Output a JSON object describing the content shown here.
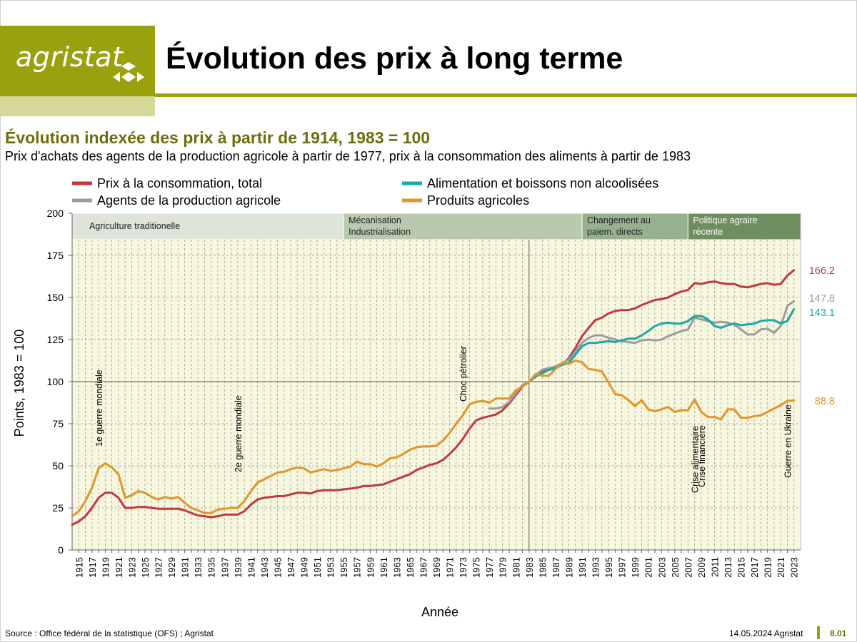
{
  "header": {
    "logo_text": "agristat",
    "page_title": "Évolution des prix à long terme"
  },
  "chart_heading": {
    "title": "Évolution indexée des prix à partir de 1914, 1983 = 100",
    "subtitle": "Prix d'achats des agents de la production agricole à partir de 1977, prix à la consommation des aliments à partir de 1983"
  },
  "footer": {
    "source": "Source : Office fédéral de la statistique (OFS) ; Agristat",
    "date": "14.05.2024 Agristat",
    "page": "8.01"
  },
  "colors": {
    "brand": "#9aa10f",
    "brand_light": "#d7d99a",
    "title_text": "#6b6f0b",
    "plot_bg": "#f7f6df",
    "grid": "#9a9a88"
  },
  "chart_data": {
    "type": "line",
    "xlabel": "Année",
    "ylabel": "Points, 1983 = 100",
    "ylim": [
      0,
      200
    ],
    "yticks": [
      0,
      25,
      50,
      75,
      100,
      125,
      150,
      175,
      200
    ],
    "xlim": [
      1914,
      2024
    ],
    "xticks": [
      1915,
      1917,
      1919,
      1921,
      1923,
      1925,
      1927,
      1929,
      1931,
      1933,
      1935,
      1937,
      1939,
      1941,
      1943,
      1945,
      1947,
      1949,
      1951,
      1953,
      1955,
      1957,
      1959,
      1961,
      1963,
      1965,
      1967,
      1969,
      1971,
      1973,
      1975,
      1977,
      1979,
      1981,
      1983,
      1985,
      1987,
      1989,
      1991,
      1993,
      1995,
      1997,
      1999,
      2001,
      2003,
      2005,
      2007,
      2009,
      2011,
      2013,
      2015,
      2017,
      2019,
      2021,
      2023
    ],
    "reference_lines": {
      "year": 1983,
      "value": 100
    },
    "legend": "top, two columns",
    "grid": true,
    "periods": [
      {
        "label": [
          "Agriculture traditionelle"
        ],
        "start": 1914,
        "end": 1955,
        "color": "#dfe4da"
      },
      {
        "label": [
          "Mécanisation",
          "Industrialisation"
        ],
        "start": 1955,
        "end": 1991,
        "color": "#b9c9b0"
      },
      {
        "label": [
          "Changement au",
          "paiem. directs"
        ],
        "start": 1991,
        "end": 2007,
        "color": "#97b190"
      },
      {
        "label": [
          "Politique agraire",
          "récente"
        ],
        "start": 2007,
        "end": 2024,
        "color": "#6e8e5f"
      }
    ],
    "annotations": [
      {
        "text": "1e guerre mondiale",
        "year": 1918
      },
      {
        "text": "2e guerre mondiale",
        "year": 1939
      },
      {
        "text": "Choc pétrolier",
        "year": 1973
      },
      {
        "text": "Crise alimentaire",
        "year": 2008
      },
      {
        "text": "Crise financière",
        "year": 2009
      },
      {
        "text": "Guerre en Ukraine",
        "year": 2022
      }
    ],
    "series": [
      {
        "name": "Prix à la consommation, total",
        "color": "#c0393c",
        "legend_column": 0,
        "end_label": "166.2",
        "x": [
          1914,
          1915,
          1916,
          1917,
          1918,
          1919,
          1920,
          1921,
          1922,
          1923,
          1924,
          1925,
          1926,
          1927,
          1928,
          1929,
          1930,
          1931,
          1932,
          1933,
          1934,
          1935,
          1936,
          1937,
          1938,
          1939,
          1940,
          1941,
          1942,
          1943,
          1944,
          1945,
          1946,
          1947,
          1948,
          1949,
          1950,
          1951,
          1952,
          1953,
          1954,
          1955,
          1956,
          1957,
          1958,
          1959,
          1960,
          1961,
          1962,
          1963,
          1964,
          1965,
          1966,
          1967,
          1968,
          1969,
          1970,
          1971,
          1972,
          1973,
          1974,
          1975,
          1976,
          1977,
          1978,
          1979,
          1980,
          1981,
          1982,
          1983,
          1984,
          1985,
          1986,
          1987,
          1988,
          1989,
          1990,
          1991,
          1992,
          1993,
          1994,
          1995,
          1996,
          1997,
          1998,
          1999,
          2000,
          2001,
          2002,
          2003,
          2004,
          2005,
          2006,
          2007,
          2008,
          2009,
          2010,
          2011,
          2012,
          2013,
          2014,
          2015,
          2016,
          2017,
          2018,
          2019,
          2020,
          2021,
          2022,
          2023
        ],
        "y": [
          15,
          17,
          20,
          25,
          31,
          34,
          34,
          31,
          25,
          25,
          25.5,
          25.5,
          25,
          24.5,
          24.5,
          24.5,
          24.5,
          23.5,
          22,
          20.5,
          20,
          19.5,
          20,
          21,
          21,
          21,
          23,
          27,
          30,
          31,
          31.5,
          32,
          32,
          33,
          34,
          34,
          33.5,
          35,
          35.5,
          35.5,
          35.5,
          36,
          36.5,
          37,
          38,
          38,
          38.5,
          39,
          40.5,
          42,
          43.5,
          45,
          47.5,
          49,
          50.5,
          51.5,
          53.5,
          57,
          61,
          66,
          72,
          77,
          78.5,
          79.5,
          80.5,
          83,
          87,
          92,
          97,
          100,
          103,
          106,
          107,
          108,
          110,
          114,
          120,
          127,
          132,
          136.5,
          138,
          140.5,
          142,
          142.5,
          142.5,
          143.5,
          145.5,
          147,
          148.5,
          149,
          150,
          152,
          153.5,
          154.5,
          158.5,
          158,
          159,
          159.5,
          158.5,
          158,
          158,
          156.5,
          156,
          157,
          158,
          158.5,
          157.5,
          158,
          163,
          166.2
        ]
      },
      {
        "name": "Agents de la production agricole",
        "color": "#9c9c9c",
        "legend_column": 0,
        "end_label": "147.8",
        "x": [
          1977,
          1978,
          1979,
          1980,
          1981,
          1982,
          1983,
          1984,
          1985,
          1986,
          1987,
          1988,
          1989,
          1990,
          1991,
          1992,
          1993,
          1994,
          1995,
          1996,
          1997,
          1998,
          1999,
          2000,
          2001,
          2002,
          2003,
          2004,
          2005,
          2006,
          2007,
          2008,
          2009,
          2010,
          2011,
          2012,
          2013,
          2014,
          2015,
          2016,
          2017,
          2018,
          2019,
          2020,
          2021,
          2022,
          2023
        ],
        "y": [
          84,
          84,
          85,
          88,
          93,
          98,
          100,
          104,
          107,
          108,
          109,
          111,
          113,
          118,
          123,
          126,
          127.5,
          127.5,
          126,
          125,
          124,
          123.5,
          123,
          124.5,
          125,
          124.5,
          125,
          127,
          128.5,
          130,
          131,
          138,
          137,
          136,
          135,
          135.5,
          135,
          134,
          131,
          128,
          128,
          131,
          131.5,
          129,
          133,
          145,
          147.8
        ]
      },
      {
        "name": "Alimentation et boissons non alcoolisées",
        "color": "#1aa9a6",
        "legend_column": 1,
        "end_label": "143.1",
        "x": [
          1983,
          1984,
          1985,
          1986,
          1987,
          1988,
          1989,
          1990,
          1991,
          1992,
          1993,
          1994,
          1995,
          1996,
          1997,
          1998,
          1999,
          2000,
          2001,
          2002,
          2003,
          2004,
          2005,
          2006,
          2007,
          2008,
          2009,
          2010,
          2011,
          2012,
          2013,
          2014,
          2015,
          2016,
          2017,
          2018,
          2019,
          2020,
          2021,
          2022,
          2023
        ],
        "y": [
          100,
          103,
          105,
          107,
          108,
          110,
          111,
          116,
          121,
          123,
          123,
          123.5,
          124,
          123.5,
          124.5,
          125.5,
          125.5,
          127.5,
          130,
          133,
          134.5,
          135,
          134.5,
          134.5,
          136,
          139,
          139,
          137,
          133,
          132,
          133.5,
          134.5,
          133.5,
          134,
          134.5,
          136,
          136.5,
          136.5,
          134.5,
          136,
          143.1
        ]
      },
      {
        "name": "Produits agricoles",
        "color": "#e0962a",
        "legend_column": 1,
        "end_label": "88.8",
        "x": [
          1914,
          1915,
          1916,
          1917,
          1918,
          1919,
          1920,
          1921,
          1922,
          1923,
          1924,
          1925,
          1926,
          1927,
          1928,
          1929,
          1930,
          1931,
          1932,
          1933,
          1934,
          1935,
          1936,
          1937,
          1938,
          1939,
          1940,
          1941,
          1942,
          1943,
          1944,
          1945,
          1946,
          1947,
          1948,
          1949,
          1950,
          1951,
          1952,
          1953,
          1954,
          1955,
          1956,
          1957,
          1958,
          1959,
          1960,
          1961,
          1962,
          1963,
          1964,
          1965,
          1966,
          1967,
          1968,
          1969,
          1970,
          1971,
          1972,
          1973,
          1974,
          1975,
          1976,
          1977,
          1978,
          1979,
          1980,
          1981,
          1982,
          1983,
          1984,
          1985,
          1986,
          1987,
          1988,
          1989,
          1990,
          1991,
          1992,
          1993,
          1994,
          1995,
          1996,
          1997,
          1998,
          1999,
          2000,
          2001,
          2002,
          2003,
          2004,
          2005,
          2006,
          2007,
          2008,
          2009,
          2010,
          2011,
          2012,
          2013,
          2014,
          2015,
          2016,
          2017,
          2018,
          2019,
          2020,
          2021,
          2022,
          2023
        ],
        "y": [
          20,
          23,
          29,
          37,
          48.5,
          51.5,
          49,
          45,
          31,
          32.5,
          35,
          34,
          31.5,
          30,
          31.5,
          30.5,
          31.5,
          28,
          25,
          23.5,
          22,
          22,
          24,
          24.5,
          25,
          25,
          29,
          35,
          40,
          42,
          44,
          46,
          46.5,
          48,
          49,
          48.5,
          46,
          47,
          48,
          47,
          47.5,
          48.5,
          49.5,
          52.5,
          51,
          51,
          49.5,
          51.5,
          54.5,
          55,
          57,
          59.5,
          61,
          61.5,
          61.5,
          62,
          65,
          69.5,
          75,
          80,
          86.5,
          88,
          88.5,
          87.5,
          90,
          90,
          90,
          95,
          97,
          100,
          104.5,
          103.5,
          103.5,
          107.5,
          111,
          110.5,
          112.5,
          111.5,
          107.5,
          107,
          106,
          99.5,
          92.5,
          92,
          89,
          85.5,
          89,
          83.5,
          82.5,
          83.5,
          85,
          82,
          83,
          83,
          89.5,
          82,
          79,
          79,
          77.5,
          83.5,
          83.5,
          78.5,
          78.5,
          79.5,
          80,
          82,
          84,
          86,
          88.5,
          88.8
        ]
      }
    ]
  }
}
